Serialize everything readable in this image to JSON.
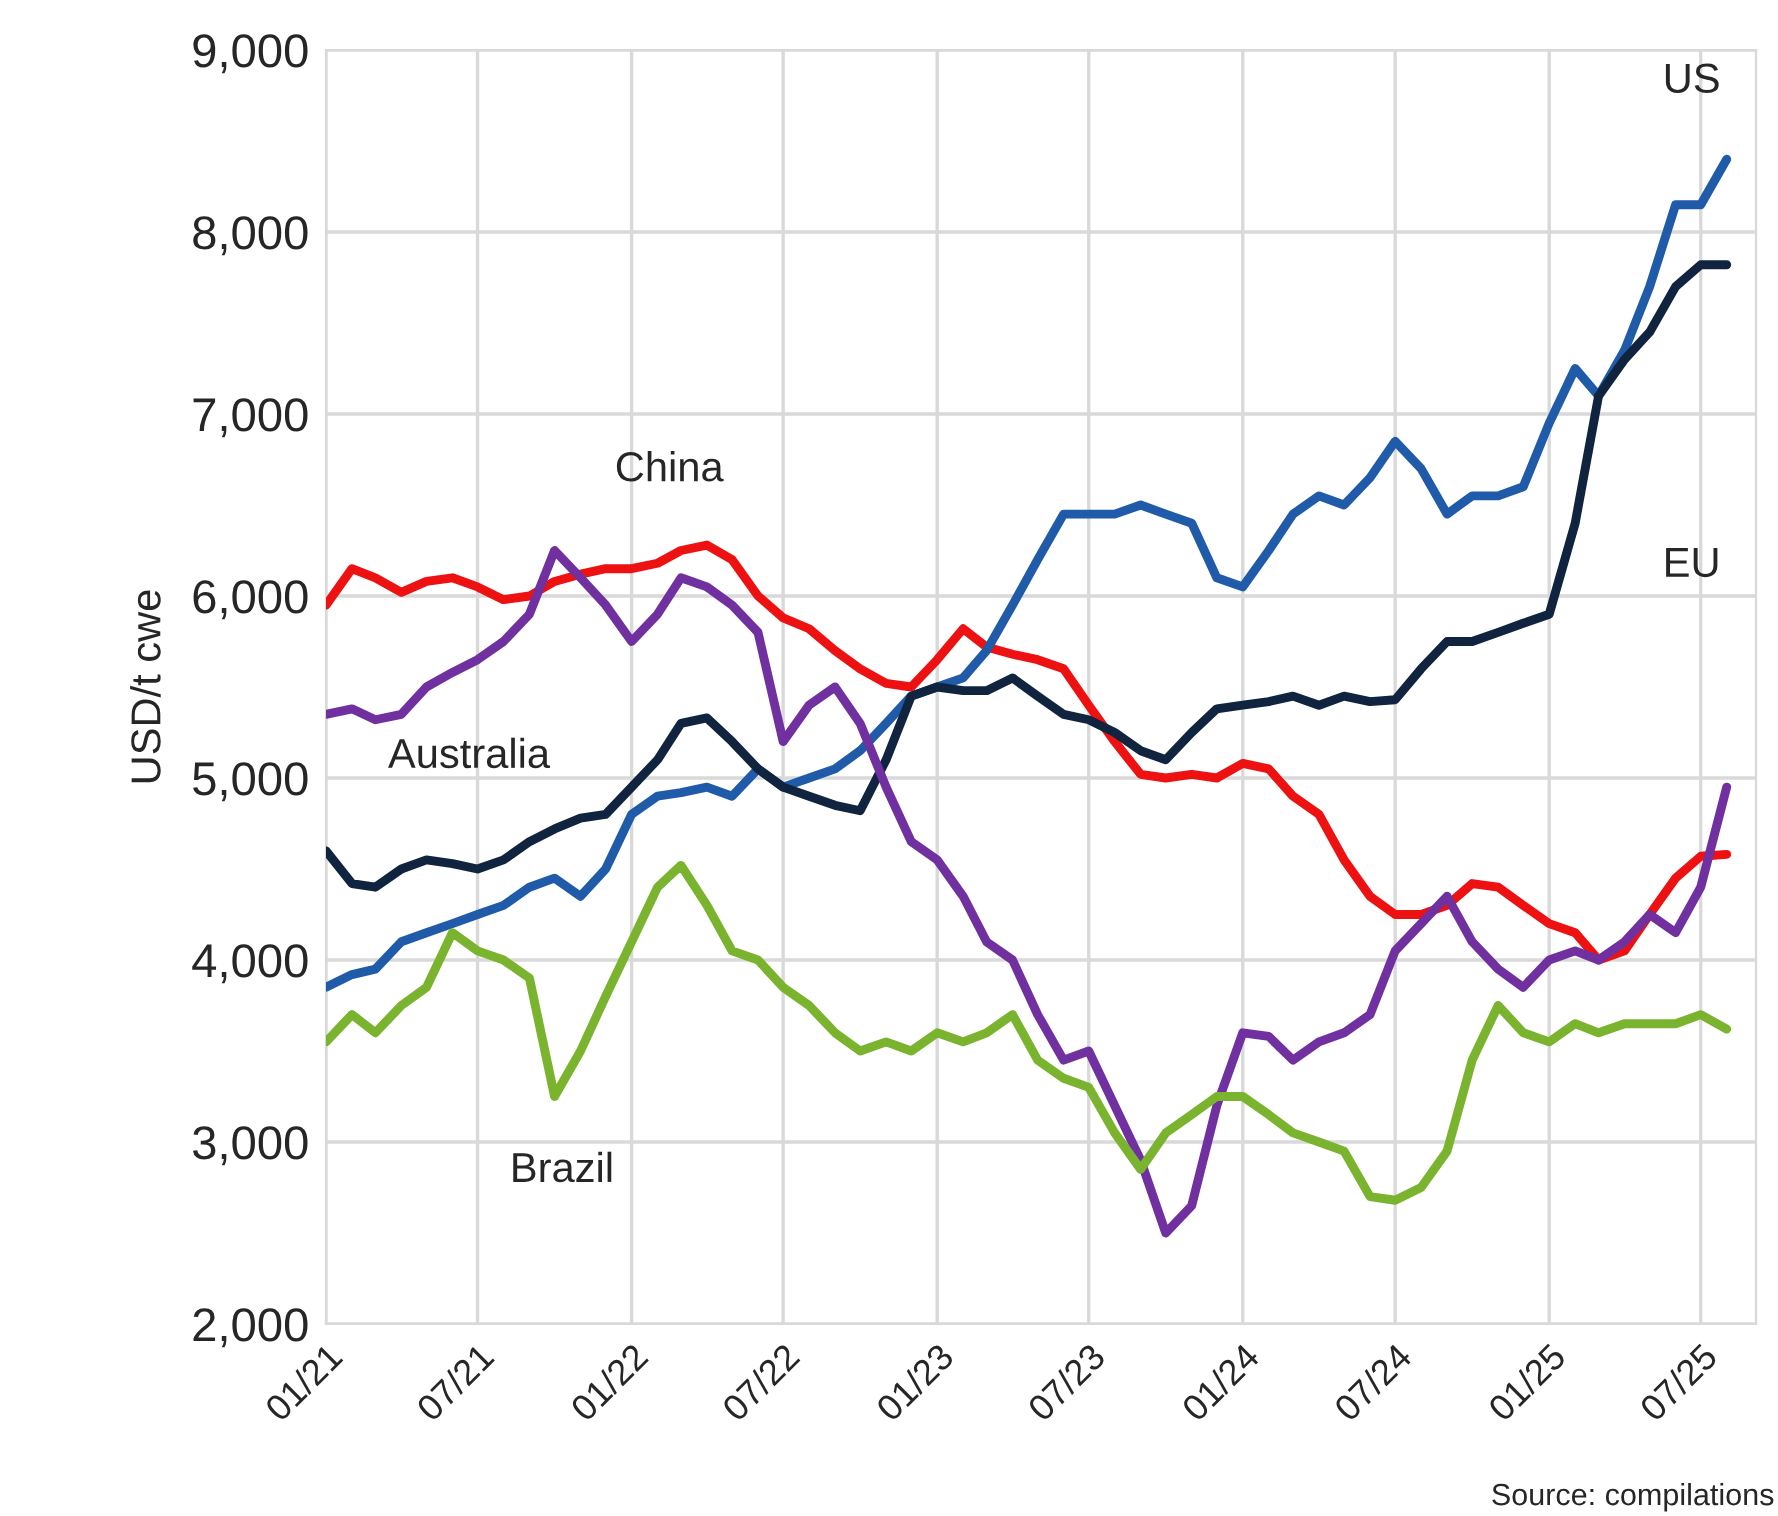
{
  "chart_data": {
    "type": "line",
    "ylabel": "USD/t cwe",
    "x": [
      "2021-01",
      "2021-02",
      "2021-03",
      "2021-04",
      "2021-05",
      "2021-06",
      "2021-07",
      "2021-08",
      "2021-09",
      "2021-10",
      "2021-11",
      "2021-12",
      "2022-01",
      "2022-02",
      "2022-03",
      "2022-04",
      "2022-05",
      "2022-06",
      "2022-07",
      "2022-08",
      "2022-09",
      "2022-10",
      "2022-11",
      "2022-12",
      "2023-01",
      "2023-02",
      "2023-03",
      "2023-04",
      "2023-05",
      "2023-06",
      "2023-07",
      "2023-08",
      "2023-09",
      "2023-10",
      "2023-11",
      "2023-12",
      "2024-01",
      "2024-02",
      "2024-03",
      "2024-04",
      "2024-05",
      "2024-06",
      "2024-07",
      "2024-08",
      "2024-09",
      "2024-10",
      "2024-11",
      "2024-12",
      "2025-01",
      "2025-02",
      "2025-03",
      "2025-04",
      "2025-05",
      "2025-06",
      "2025-07",
      "2025-08"
    ],
    "series": [
      {
        "name": "China",
        "color": "#ee1111",
        "values": [
          5950,
          6150,
          6100,
          6020,
          6080,
          6100,
          6050,
          5980,
          6000,
          6080,
          6120,
          6150,
          6150,
          6180,
          6250,
          6280,
          6200,
          6000,
          5880,
          5820,
          5700,
          5600,
          5520,
          5500,
          5650,
          5820,
          5720,
          5680,
          5650,
          5600,
          5400,
          5200,
          5020,
          5000,
          5020,
          5000,
          5080,
          5050,
          4900,
          4800,
          4550,
          4350,
          4250,
          4250,
          4300,
          4420,
          4400,
          4300,
          4200,
          4150,
          4000,
          4050,
          4250,
          4450,
          4570,
          4580
        ]
      },
      {
        "name": "US",
        "color": "#1f5ba8",
        "values": [
          3850,
          3920,
          3950,
          4100,
          4150,
          4200,
          4250,
          4300,
          4400,
          4450,
          4350,
          4500,
          4800,
          4900,
          4920,
          4950,
          4900,
          5050,
          4950,
          5000,
          5050,
          5150,
          5300,
          5450,
          5500,
          5550,
          5700,
          5950,
          6200,
          6450,
          6450,
          6450,
          6500,
          6450,
          6400,
          6100,
          6050,
          6250,
          6450,
          6550,
          6500,
          6650,
          6850,
          6700,
          6450,
          6550,
          6550,
          6600,
          6950,
          7250,
          7100,
          7350,
          7700,
          8150,
          8150,
          8400
        ]
      },
      {
        "name": "EU",
        "color": "#10243f",
        "values": [
          4600,
          4420,
          4400,
          4500,
          4550,
          4530,
          4500,
          4550,
          4650,
          4720,
          4780,
          4800,
          4950,
          5100,
          5300,
          5330,
          5200,
          5050,
          4950,
          4900,
          4850,
          4820,
          5100,
          5450,
          5500,
          5480,
          5480,
          5550,
          5450,
          5350,
          5320,
          5250,
          5150,
          5100,
          5250,
          5380,
          5400,
          5420,
          5450,
          5400,
          5450,
          5420,
          5430,
          5600,
          5750,
          5750,
          5800,
          5850,
          5900,
          6400,
          7100,
          7300,
          7450,
          7700,
          7820,
          7820
        ]
      },
      {
        "name": "Australia",
        "color": "#7030a0",
        "values": [
          5350,
          5380,
          5320,
          5350,
          5500,
          5580,
          5650,
          5750,
          5900,
          6250,
          6100,
          5950,
          5750,
          5900,
          6100,
          6050,
          5950,
          5800,
          5200,
          5400,
          5500,
          5300,
          4950,
          4650,
          4550,
          4350,
          4100,
          4000,
          3700,
          3450,
          3500,
          3200,
          2900,
          2500,
          2650,
          3200,
          3600,
          3580,
          3450,
          3550,
          3600,
          3700,
          4050,
          4200,
          4350,
          4100,
          3950,
          3850,
          4000,
          4050,
          4000,
          4100,
          4250,
          4150,
          4400,
          4950
        ]
      },
      {
        "name": "Brazil",
        "color": "#7ab32e",
        "values": [
          3550,
          3700,
          3600,
          3750,
          3850,
          4150,
          4050,
          4000,
          3900,
          3250,
          3500,
          3800,
          4100,
          4400,
          4520,
          4300,
          4050,
          4000,
          3850,
          3750,
          3600,
          3500,
          3550,
          3500,
          3600,
          3550,
          3600,
          3700,
          3450,
          3350,
          3300,
          3050,
          2850,
          3050,
          3150,
          3250,
          3250,
          3150,
          3050,
          3000,
          2950,
          2700,
          2680,
          2750,
          2950,
          3450,
          3750,
          3600,
          3550,
          3650,
          3600,
          3650,
          3650,
          3650,
          3700,
          3620
        ]
      }
    ],
    "xlim": [
      "2021-01-01",
      "2025-09-05"
    ],
    "xticks": [
      {
        "value": "2021-01-01",
        "label": "01/21"
      },
      {
        "value": "2021-07-01",
        "label": "07/21"
      },
      {
        "value": "2022-01-01",
        "label": "01/22"
      },
      {
        "value": "2022-07-01",
        "label": "07/22"
      },
      {
        "value": "2023-01-01",
        "label": "01/23"
      },
      {
        "value": "2023-07-01",
        "label": "07/23"
      },
      {
        "value": "2024-01-01",
        "label": "01/24"
      },
      {
        "value": "2024-07-01",
        "label": "07/24"
      },
      {
        "value": "2025-01-01",
        "label": "01/25"
      },
      {
        "value": "2025-07-01",
        "label": "07/25"
      }
    ],
    "ylim": [
      2000,
      9000
    ],
    "yticks": [
      {
        "value": 2000,
        "label": "2,000"
      },
      {
        "value": 3000,
        "label": "3,000"
      },
      {
        "value": 4000,
        "label": "4,000"
      },
      {
        "value": 5000,
        "label": "5,000"
      },
      {
        "value": 6000,
        "label": "6,000"
      },
      {
        "value": 7000,
        "label": "7,000"
      },
      {
        "value": 8000,
        "label": "8,000"
      },
      {
        "value": 9000,
        "label": "9,000"
      }
    ],
    "grid": true,
    "line_style": "solid",
    "marker": "none",
    "annotations": [
      "Source: compilations"
    ]
  }
}
